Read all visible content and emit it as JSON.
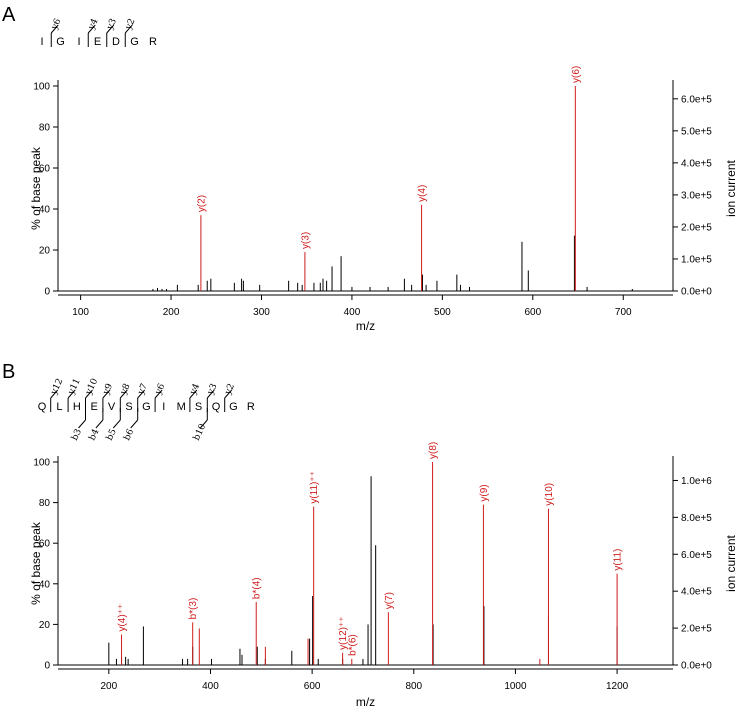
{
  "chart_data": [
    {
      "type": "bar",
      "panel": "A",
      "xlabel": "m/z",
      "ylabel": "% of base peak",
      "y2label": "ion current",
      "xlim": [
        75,
        755
      ],
      "ylim": [
        0,
        100
      ],
      "x_ticks": [
        100,
        200,
        300,
        400,
        500,
        600,
        700
      ],
      "y_ticks": [
        0,
        20,
        40,
        60,
        80,
        100
      ],
      "y2_ticks": [
        "0.0e+0",
        "1.0e+5",
        "2.0e+5",
        "3.0e+5",
        "4.0e+5",
        "5.0e+5",
        "6.0e+5"
      ],
      "y2_max": 640000,
      "sequence": [
        "I",
        "G",
        "I",
        "E",
        "D",
        "G",
        "R"
      ],
      "y_fragments": [
        {
          "label": "y6",
          "after": 0
        },
        {
          "label": "y4",
          "after": 2
        },
        {
          "label": "y3",
          "after": 3
        },
        {
          "label": "y2",
          "after": 4
        }
      ],
      "b_fragments": [],
      "peaks_black": [
        [
          180,
          1
        ],
        [
          185,
          1.5
        ],
        [
          190,
          1
        ],
        [
          195,
          1
        ],
        [
          207,
          3
        ],
        [
          230,
          3
        ],
        [
          240,
          5
        ],
        [
          244,
          6
        ],
        [
          270,
          4
        ],
        [
          278,
          6
        ],
        [
          280,
          5
        ],
        [
          298,
          3
        ],
        [
          330,
          5
        ],
        [
          340,
          4
        ],
        [
          345,
          3
        ],
        [
          358,
          4
        ],
        [
          365,
          4
        ],
        [
          368,
          6
        ],
        [
          372,
          5
        ],
        [
          378,
          12
        ],
        [
          388,
          17
        ],
        [
          400,
          2
        ],
        [
          420,
          2
        ],
        [
          440,
          2
        ],
        [
          458,
          6
        ],
        [
          466,
          3
        ],
        [
          478,
          8
        ],
        [
          482,
          3
        ],
        [
          494,
          5
        ],
        [
          516,
          8
        ],
        [
          520,
          3
        ],
        [
          530,
          2
        ],
        [
          588,
          24
        ],
        [
          595,
          10
        ],
        [
          646,
          27
        ],
        [
          660,
          2
        ],
        [
          710,
          1
        ]
      ],
      "peaks_red": [
        {
          "x": 233,
          "y": 37,
          "label": "y(2)"
        },
        {
          "x": 348,
          "y": 19,
          "label": "y(3)"
        },
        {
          "x": 477,
          "y": 42,
          "label": "y(4)"
        },
        {
          "x": 647,
          "y": 100,
          "label": "y(6)"
        }
      ]
    },
    {
      "type": "bar",
      "panel": "B",
      "xlabel": "m/z",
      "ylabel": "% of base peak",
      "y2label": "ion current",
      "xlim": [
        100,
        1310
      ],
      "ylim": [
        0,
        100
      ],
      "x_ticks": [
        200,
        400,
        600,
        800,
        1000,
        1200
      ],
      "y_ticks": [
        0,
        20,
        40,
        60,
        80,
        100
      ],
      "y2_ticks": [
        "0.0e+0",
        "2.0e+5",
        "4.0e+5",
        "6.0e+5",
        "8.0e+5",
        "1.0e+6"
      ],
      "y2_max": 1100000,
      "sequence": [
        "Q",
        "L",
        "H",
        "E",
        "V",
        "S",
        "G",
        "I",
        "M",
        "S",
        "Q",
        "G",
        "R"
      ],
      "y_fragments": [
        {
          "label": "y12",
          "after": 0
        },
        {
          "label": "y11",
          "after": 1
        },
        {
          "label": "y10",
          "after": 2
        },
        {
          "label": "y9",
          "after": 3
        },
        {
          "label": "y8",
          "after": 4
        },
        {
          "label": "y7",
          "after": 5
        },
        {
          "label": "y6",
          "after": 6
        },
        {
          "label": "y4",
          "after": 8
        },
        {
          "label": "y3",
          "after": 9
        },
        {
          "label": "y2",
          "after": 10
        }
      ],
      "b_fragments": [
        {
          "label": "b3",
          "after": 2
        },
        {
          "label": "b4",
          "after": 3
        },
        {
          "label": "b5",
          "after": 4
        },
        {
          "label": "b6",
          "after": 5
        },
        {
          "label": "b10",
          "after": 9
        }
      ],
      "peaks_black": [
        [
          200,
          11
        ],
        [
          215,
          3
        ],
        [
          225,
          4
        ],
        [
          233,
          4
        ],
        [
          238,
          3
        ],
        [
          268,
          19
        ],
        [
          345,
          3
        ],
        [
          355,
          3
        ],
        [
          365,
          9
        ],
        [
          402,
          3
        ],
        [
          458,
          8
        ],
        [
          462,
          5
        ],
        [
          492,
          9
        ],
        [
          508,
          3
        ],
        [
          560,
          7
        ],
        [
          595,
          13
        ],
        [
          601,
          34
        ],
        [
          612,
          3
        ],
        [
          660,
          3
        ],
        [
          700,
          3
        ],
        [
          710,
          20
        ],
        [
          716,
          93
        ],
        [
          725,
          59
        ],
        [
          838,
          20
        ],
        [
          938,
          29
        ],
        [
          1065,
          24
        ],
        [
          1200,
          19
        ]
      ],
      "peaks_red": [
        {
          "x": 225,
          "y": 15,
          "label": "y(4)⁺⁺"
        },
        {
          "x": 365,
          "y": 21,
          "label": "b*(3)"
        },
        {
          "x": 378,
          "y": 18,
          "label": ""
        },
        {
          "x": 490,
          "y": 31,
          "label": "b*(4)"
        },
        {
          "x": 508,
          "y": 9,
          "label": ""
        },
        {
          "x": 592,
          "y": 13,
          "label": ""
        },
        {
          "x": 603,
          "y": 78,
          "label": "y(11)⁺⁺"
        },
        {
          "x": 660,
          "y": 6,
          "label": "y(12)⁺⁺"
        },
        {
          "x": 678,
          "y": 3,
          "label": "b*(6)"
        },
        {
          "x": 750,
          "y": 26,
          "label": "y(7)"
        },
        {
          "x": 837,
          "y": 100,
          "label": "y(8)"
        },
        {
          "x": 937,
          "y": 79,
          "label": "y(9)"
        },
        {
          "x": 1048,
          "y": 3,
          "label": ""
        },
        {
          "x": 1065,
          "y": 77,
          "label": "y(10)"
        },
        {
          "x": 1200,
          "y": 45,
          "label": "y(11)"
        }
      ]
    }
  ]
}
